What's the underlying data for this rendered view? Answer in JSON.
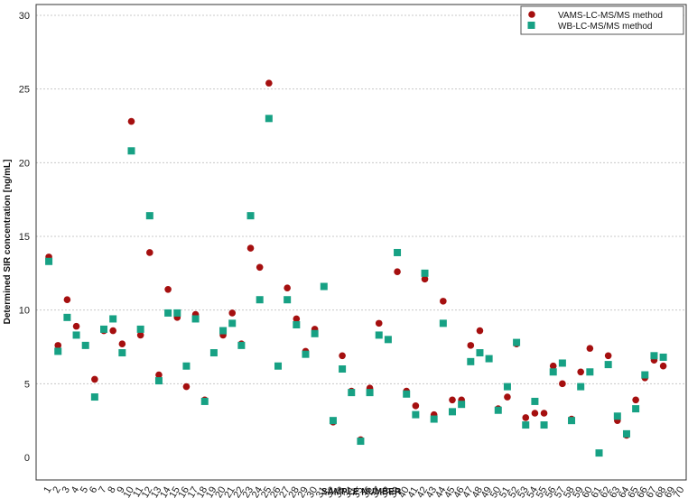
{
  "chart_data": {
    "type": "scatter",
    "title": "",
    "xlabel": "SAMPLE NUMBER",
    "ylabel": "Determined SIR concentration [ng/mL]",
    "x": [
      1,
      2,
      3,
      4,
      5,
      6,
      7,
      8,
      9,
      10,
      11,
      12,
      13,
      14,
      15,
      16,
      17,
      18,
      19,
      20,
      21,
      22,
      23,
      24,
      25,
      26,
      27,
      28,
      29,
      30,
      31,
      32,
      33,
      34,
      35,
      36,
      37,
      38,
      39,
      40,
      41,
      42,
      43,
      44,
      45,
      46,
      47,
      48,
      49,
      50,
      51,
      52,
      53,
      54,
      55,
      56,
      57,
      58,
      59,
      60,
      61,
      62,
      63,
      64,
      65,
      66,
      67,
      68,
      69,
      70
    ],
    "xlim": [
      0.5,
      70.5
    ],
    "ylim": [
      0,
      30
    ],
    "yticks": [
      0,
      5,
      10,
      15,
      20,
      25,
      30
    ],
    "grid": true,
    "legend_position": "top-right",
    "series": [
      {
        "name": "VAMS-LC-MS/MS method",
        "marker": "circle",
        "color": "#a50f0f",
        "values": [
          13.6,
          7.6,
          10.7,
          8.9,
          7.6,
          5.3,
          8.6,
          8.6,
          7.7,
          22.8,
          8.3,
          13.9,
          5.6,
          11.4,
          9.5,
          4.8,
          9.7,
          3.9,
          null,
          8.3,
          9.8,
          7.7,
          14.2,
          12.9,
          25.4,
          null,
          11.5,
          9.4,
          7.2,
          8.7,
          11.6,
          2.4,
          6.9,
          4.5,
          1.2,
          4.7,
          9.1,
          null,
          12.6,
          4.5,
          3.5,
          12.1,
          2.9,
          10.6,
          3.9,
          3.9,
          7.6,
          8.6,
          null,
          3.3,
          4.1,
          7.7,
          2.7,
          3.0,
          3.0,
          6.2,
          5.0,
          2.6,
          5.8,
          7.4,
          null,
          6.9,
          2.5,
          1.5,
          3.9,
          5.4,
          6.6,
          6.2,
          null,
          null
        ]
      },
      {
        "name": "WB-LC-MS/MS method",
        "marker": "square",
        "color": "#17a184",
        "values": [
          13.3,
          7.2,
          9.5,
          8.3,
          7.6,
          4.1,
          8.7,
          9.4,
          7.1,
          20.8,
          8.7,
          16.4,
          5.2,
          9.8,
          9.8,
          6.2,
          9.4,
          3.8,
          7.1,
          8.6,
          9.1,
          7.6,
          16.4,
          10.7,
          23.0,
          6.2,
          10.7,
          9.0,
          7.0,
          8.4,
          11.6,
          2.5,
          6.0,
          4.4,
          1.1,
          4.4,
          8.3,
          8.0,
          13.9,
          4.3,
          2.9,
          12.5,
          2.6,
          9.1,
          3.1,
          3.6,
          6.5,
          7.1,
          6.7,
          3.2,
          4.8,
          7.8,
          2.2,
          3.8,
          2.2,
          5.8,
          6.4,
          2.5,
          4.8,
          5.8,
          0.3,
          6.3,
          2.8,
          1.6,
          3.3,
          5.6,
          6.9,
          6.8,
          null,
          null
        ]
      }
    ]
  }
}
